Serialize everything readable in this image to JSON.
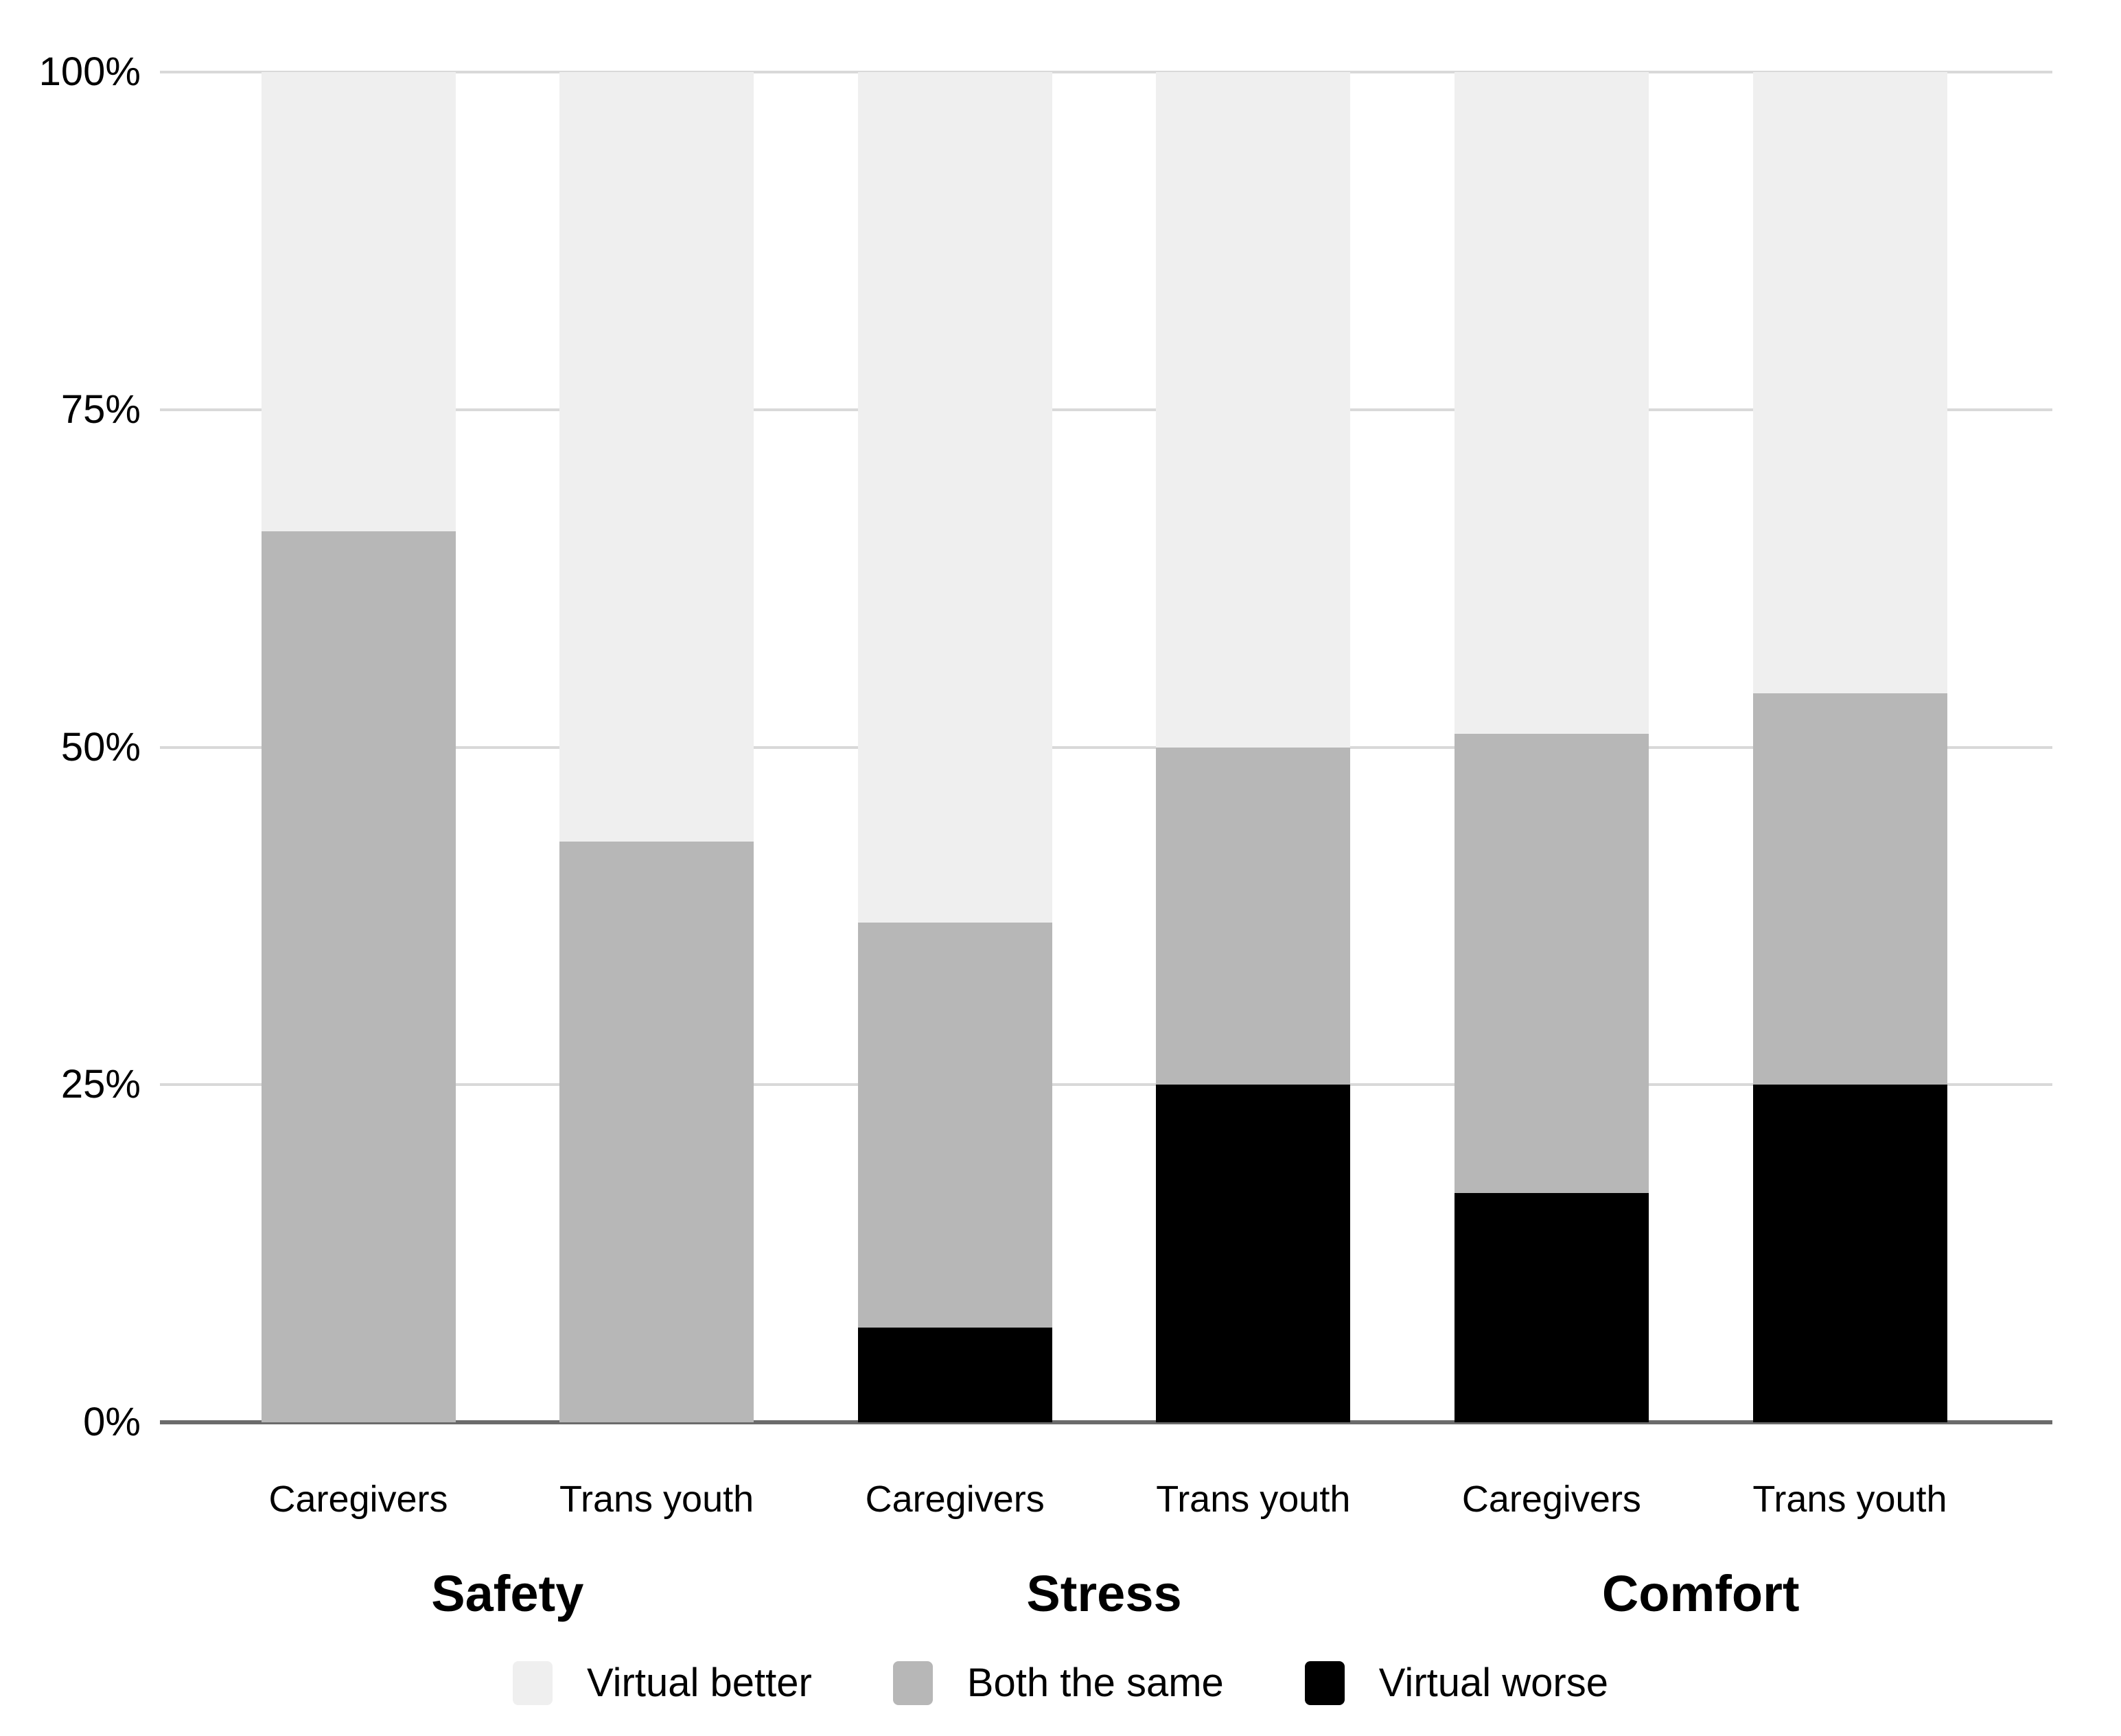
{
  "chart_data": {
    "type": "bar",
    "stacked": true,
    "percent": true,
    "title": "",
    "groups": [
      "Safety",
      "Stress",
      "Comfort"
    ],
    "categories": [
      "Caregivers",
      "Trans youth",
      "Caregivers",
      "Trans youth",
      "Caregivers",
      "Trans youth"
    ],
    "category_groups": [
      0,
      0,
      1,
      1,
      2,
      2
    ],
    "series": [
      {
        "name": "Virtual worse",
        "color": "#000000",
        "values": [
          0,
          0,
          7,
          25,
          17,
          25
        ]
      },
      {
        "name": "Both the same",
        "color": "#b7b7b7",
        "values": [
          66,
          43,
          30,
          25,
          34,
          29
        ]
      },
      {
        "name": "Virtual better",
        "color": "#efefef",
        "values": [
          34,
          57,
          63,
          50,
          49,
          46
        ]
      }
    ],
    "legend": [
      {
        "label": "Virtual better",
        "color": "#efefef"
      },
      {
        "label": "Both the same",
        "color": "#b7b7b7"
      },
      {
        "label": "Virtual worse",
        "color": "#000000"
      }
    ],
    "legend_position": "bottom",
    "y_axis": {
      "ticks": [
        "0%",
        "25%",
        "50%",
        "75%",
        "100%"
      ],
      "tick_values": [
        0,
        25,
        50,
        75,
        100
      ],
      "min": 0,
      "max": 100,
      "grid": true
    }
  },
  "colors": {
    "background": "#ffffff",
    "gridline": "#d9d9d9",
    "baseline": "#6b6b6b",
    "text": "#000000"
  }
}
